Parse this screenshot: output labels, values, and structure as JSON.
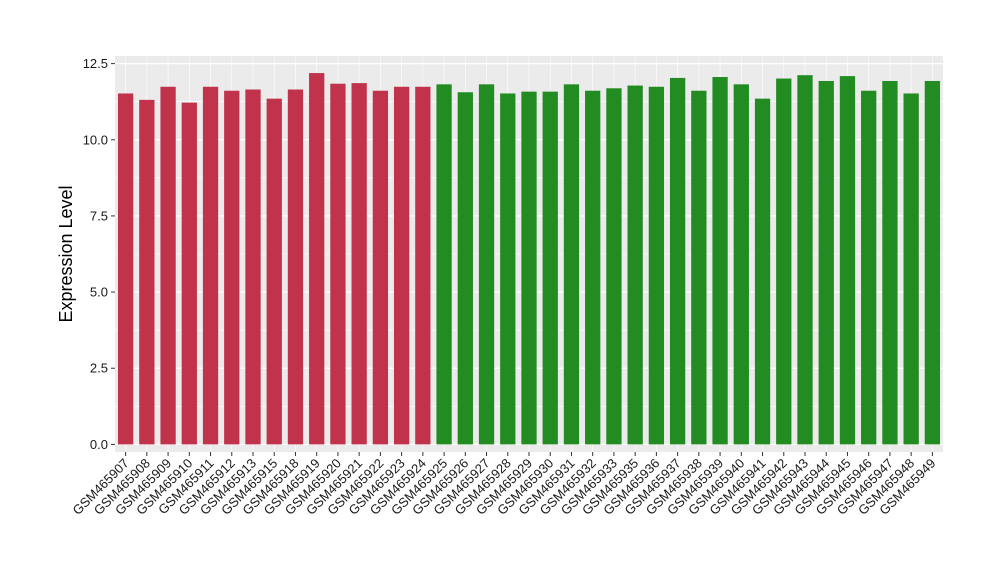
{
  "chart_data": {
    "type": "bar",
    "ylabel": "Expression Level",
    "xlabel": "",
    "ylim": [
      -0.25,
      12.75
    ],
    "yticks": [
      0.0,
      2.5,
      5.0,
      7.5,
      10.0,
      12.5
    ],
    "ytick_labels": [
      "0.0",
      "2.5",
      "5.0",
      "7.5",
      "10.0",
      "12.5"
    ],
    "grid": true,
    "legend": "none",
    "colors": {
      "group_a": "#c0334a",
      "group_b": "#228b22",
      "panel_bg": "#ebebeb",
      "grid": "#ffffff"
    },
    "categories": [
      "GSM465907",
      "GSM465908",
      "GSM465909",
      "GSM465910",
      "GSM465911",
      "GSM465912",
      "GSM465913",
      "GSM465915",
      "GSM465918",
      "GSM465919",
      "GSM465920",
      "GSM465921",
      "GSM465922",
      "GSM465923",
      "GSM465924",
      "GSM465925",
      "GSM465926",
      "GSM465927",
      "GSM465928",
      "GSM465929",
      "GSM465930",
      "GSM465931",
      "GSM465932",
      "GSM465933",
      "GSM465935",
      "GSM465936",
      "GSM465937",
      "GSM465938",
      "GSM465939",
      "GSM465940",
      "GSM465941",
      "GSM465942",
      "GSM465943",
      "GSM465944",
      "GSM465945",
      "GSM465946",
      "GSM465947",
      "GSM465948",
      "GSM465949"
    ],
    "values": [
      11.52,
      11.31,
      11.74,
      11.22,
      11.74,
      11.61,
      11.65,
      11.35,
      11.65,
      12.19,
      11.84,
      11.86,
      11.61,
      11.74,
      11.74,
      11.82,
      11.56,
      11.82,
      11.52,
      11.58,
      11.58,
      11.82,
      11.61,
      11.69,
      11.78,
      11.74,
      12.03,
      11.61,
      12.06,
      11.82,
      11.35,
      12.01,
      12.12,
      11.93,
      12.09,
      11.61,
      11.93,
      11.52,
      11.93
    ],
    "groups": [
      "a",
      "a",
      "a",
      "a",
      "a",
      "a",
      "a",
      "a",
      "a",
      "a",
      "a",
      "a",
      "a",
      "a",
      "a",
      "b",
      "b",
      "b",
      "b",
      "b",
      "b",
      "b",
      "b",
      "b",
      "b",
      "b",
      "b",
      "b",
      "b",
      "b",
      "b",
      "b",
      "b",
      "b",
      "b",
      "b",
      "b",
      "b",
      "b"
    ]
  }
}
